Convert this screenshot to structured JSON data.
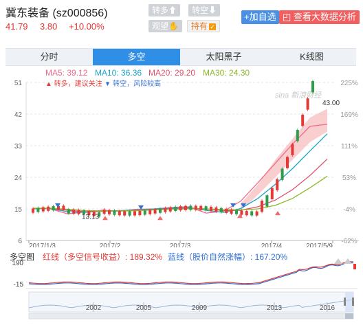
{
  "header": {
    "stock_name": "冀东装备",
    "stock_code": "(sz000856)",
    "price": "41.79",
    "change": "3.80",
    "change_pct": "+10.00%",
    "btn_turn_more": "转多",
    "btn_turn_empty": "转空",
    "btn_watch": "观望",
    "btn_hold": "持有",
    "add_watchlist": "+加自选",
    "big_data": "查看大数据分析"
  },
  "tabs": [
    {
      "label": "分时",
      "active": false
    },
    {
      "label": "多空",
      "active": true
    },
    {
      "label": "太阳黑子",
      "active": false
    },
    {
      "label": "K线图",
      "active": false
    }
  ],
  "ma": {
    "ma5": "MA5: 39.12",
    "ma10": "MA10: 36.36",
    "ma20": "MA20: 29.20",
    "ma30": "MA30: 24.30",
    "colors": {
      "ma5": "#f06a8a",
      "ma10": "#1aa5c8",
      "ma20": "#e0506a",
      "ma30": "#8cb82a"
    }
  },
  "legend": {
    "up_signal": "▲ 转多，建议关注",
    "down_signal": "▼ 转空，风险较高"
  },
  "watermark": "sina 新浪财经",
  "main_chart": {
    "y_ticks": [
      "51",
      "42",
      "33",
      "24",
      "15",
      "6"
    ],
    "pct_ticks": [
      "225%",
      "169%",
      "111%",
      "53%",
      "-4%",
      "-62%"
    ],
    "x_ticks": [
      "2017/1/3",
      "2017/2",
      "2017/3",
      "2017/4",
      "2017/5/9"
    ],
    "low_label": "13.13",
    "high_label": "43.00"
  },
  "indicator": {
    "label": "多空图",
    "red_line": "红线（多空信号收益）: 189.32%",
    "blue_line": "蓝线（股价自然涨幅）: 167.20%",
    "y_ticks": [
      "190",
      "-15"
    ],
    "colors": {
      "red": "#e53935",
      "blue": "#2f6fd6"
    }
  },
  "nav": {
    "years": [
      "2002",
      "2005",
      "2009",
      "2013",
      "2016"
    ]
  },
  "chart_data": {
    "type": "line",
    "x_ticks": [
      "2017/1/3",
      "2017/2",
      "2017/3",
      "2017/4",
      "2017/5/9"
    ],
    "ylim": [
      6,
      51
    ],
    "series": [
      {
        "name": "MA5",
        "values": [
          15.2,
          15.0,
          13.6,
          14.1,
          14.6,
          14.4,
          14.9,
          15.0,
          15.4,
          15.6,
          13.8,
          14.3,
          17.2,
          22.5,
          28.0,
          33.5,
          38.5,
          39.12
        ]
      },
      {
        "name": "MA10",
        "values": [
          15.0,
          15.1,
          14.2,
          14.0,
          14.4,
          14.5,
          14.7,
          15.0,
          15.2,
          15.4,
          14.6,
          14.0,
          15.1,
          18.0,
          22.0,
          26.5,
          31.5,
          36.36
        ]
      },
      {
        "name": "MA20",
        "values": [
          15.1,
          15.2,
          14.6,
          14.2,
          14.3,
          14.4,
          14.6,
          14.8,
          15.0,
          15.2,
          15.0,
          14.5,
          14.6,
          15.6,
          17.5,
          20.5,
          24.5,
          29.2
        ]
      },
      {
        "name": "MA30",
        "values": [
          15.2,
          15.2,
          14.9,
          14.5,
          14.4,
          14.4,
          14.5,
          14.7,
          14.9,
          15.0,
          15.0,
          14.8,
          14.7,
          15.0,
          16.0,
          18.0,
          21.0,
          24.3
        ]
      }
    ],
    "annotations": [
      "13.13",
      "43.00"
    ]
  }
}
